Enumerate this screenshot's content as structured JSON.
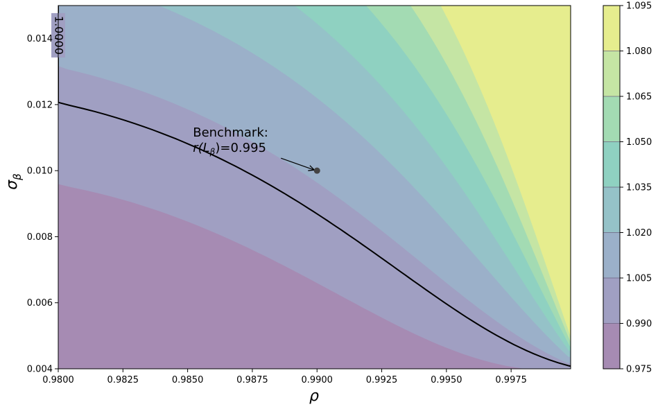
{
  "chart_data": {
    "type": "contour",
    "title": "",
    "xlabel": "ρ",
    "ylabel_symbol": "σ",
    "ylabel_subscript": "β",
    "xlim": [
      0.98,
      0.9998
    ],
    "ylim": [
      0.004,
      0.015
    ],
    "x_ticks": [
      0.98,
      0.9825,
      0.985,
      0.9875,
      0.99,
      0.9925,
      0.995,
      0.9975
    ],
    "x_tick_labels": [
      "0.9800",
      "0.9825",
      "0.9850",
      "0.9875",
      "0.9900",
      "0.9925",
      "0.9950",
      "0.9975"
    ],
    "y_ticks": [
      0.004,
      0.006,
      0.008,
      0.01,
      0.012,
      0.014
    ],
    "y_tick_labels": [
      "0.004",
      "0.006",
      "0.008",
      "0.010",
      "0.012",
      "0.014"
    ],
    "colorbar": {
      "levels": [
        0.975,
        0.99,
        1.005,
        1.02,
        1.035,
        1.05,
        1.065,
        1.08,
        1.095
      ],
      "tick_labels": [
        "0.975",
        "0.990",
        "1.005",
        "1.020",
        "1.035",
        "1.050",
        "1.065",
        "1.080",
        "1.095"
      ],
      "colors": [
        "#a68bb3",
        "#a09fc2",
        "#9bb0c9",
        "#95c2c8",
        "#8fd1c1",
        "#a3dbb3",
        "#c5e5a4",
        "#e6ed8e"
      ],
      "alpha": 0.5,
      "colormap": "viridis"
    },
    "contour_line": {
      "level": 1.0,
      "label": "1.0000",
      "color": "#000000"
    },
    "benchmark": {
      "x": 0.99,
      "y": 0.01,
      "label_line1": "Benchmark:",
      "label_line2_prefix": "r(L",
      "label_line2_sub": "β",
      "label_line2_suffix": ")=0.995",
      "point_color": "#444444"
    }
  }
}
